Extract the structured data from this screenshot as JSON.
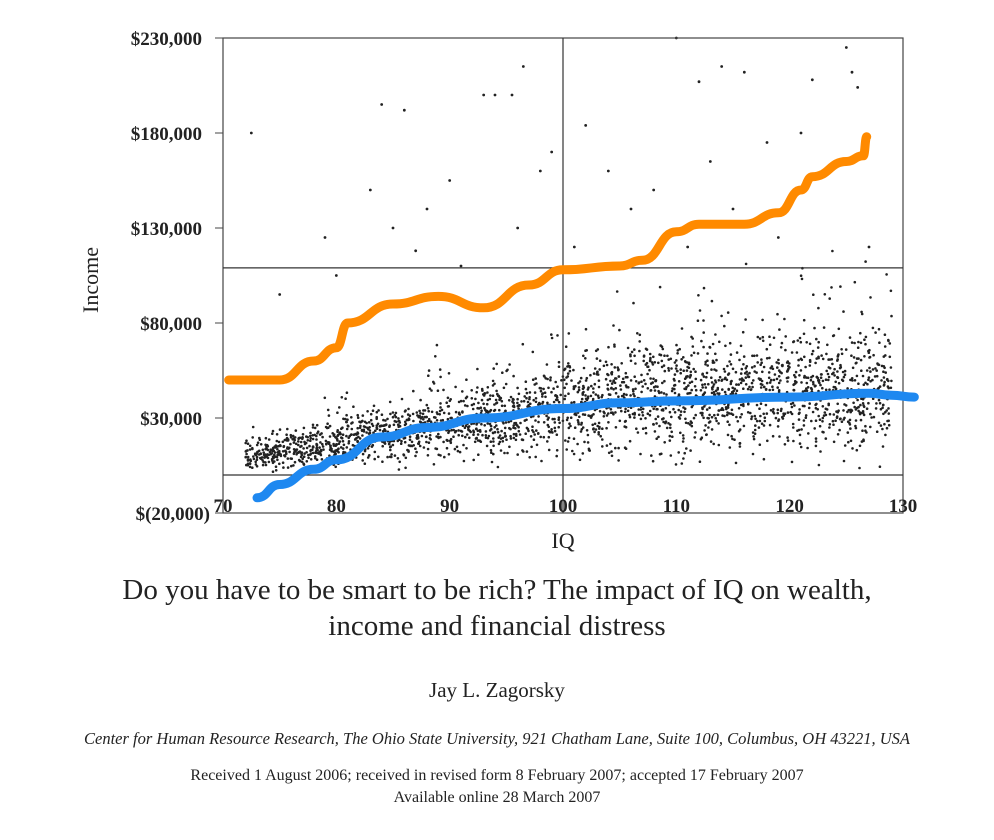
{
  "chart_data": {
    "type": "scatter",
    "xlabel": "IQ",
    "ylabel": "Income",
    "xlim": [
      70,
      130
    ],
    "ylim": [
      -20000,
      230000
    ],
    "x_ticks": [
      "70",
      "80",
      "90",
      "100",
      "110",
      "120",
      "130"
    ],
    "x_tick_values": [
      70,
      80,
      90,
      100,
      110,
      120,
      130
    ],
    "y_ticks": [
      "$230,000",
      "$180,000",
      "$130,000",
      "$80,000",
      "$30,000",
      "$(20,000)"
    ],
    "y_tick_values": [
      230000,
      180000,
      130000,
      80000,
      30000,
      -20000
    ],
    "reference_lines": {
      "vertical_iq": 100,
      "horizontal_income": 109000,
      "zero_income": 0
    },
    "grid": false,
    "scatter_cloud": {
      "count": 2600,
      "iq_range": [
        72,
        129
      ],
      "income_floor": 0,
      "seed": 7
    },
    "outliers": [
      [
        72.5,
        180000
      ],
      [
        84,
        195000
      ],
      [
        86,
        192000
      ],
      [
        93,
        200000
      ],
      [
        94,
        200000
      ],
      [
        95.5,
        200000
      ],
      [
        96.5,
        215000
      ],
      [
        102,
        184000
      ],
      [
        110,
        230000
      ],
      [
        112,
        207000
      ],
      [
        114,
        215000
      ],
      [
        116,
        212000
      ],
      [
        122,
        208000
      ],
      [
        125,
        225000
      ],
      [
        125.5,
        212000
      ],
      [
        126,
        204000
      ],
      [
        83,
        150000
      ],
      [
        88,
        140000
      ],
      [
        90,
        155000
      ],
      [
        98,
        160000
      ],
      [
        104,
        160000
      ],
      [
        108,
        150000
      ],
      [
        113,
        165000
      ],
      [
        118,
        175000
      ],
      [
        121,
        180000
      ],
      [
        123,
        160000
      ],
      [
        115,
        140000
      ],
      [
        96,
        130000
      ],
      [
        87,
        118000
      ],
      [
        79,
        125000
      ],
      [
        80,
        105000
      ],
      [
        75,
        95000
      ],
      [
        91,
        110000
      ],
      [
        101,
        120000
      ],
      [
        111,
        120000
      ],
      [
        119,
        125000
      ],
      [
        127,
        120000
      ],
      [
        106,
        140000
      ],
      [
        99,
        170000
      ],
      [
        85,
        130000
      ]
    ],
    "series": [
      {
        "name": "orange-trend",
        "color": "#ff8a00",
        "points": [
          [
            70.5,
            50000
          ],
          [
            75,
            50000
          ],
          [
            78,
            60000
          ],
          [
            80,
            67000
          ],
          [
            81,
            80000
          ],
          [
            85,
            90000
          ],
          [
            89,
            94000
          ],
          [
            93,
            88000
          ],
          [
            97,
            100000
          ],
          [
            100,
            108000
          ],
          [
            105,
            110000
          ],
          [
            107,
            113000
          ],
          [
            110,
            128000
          ],
          [
            112,
            132000
          ],
          [
            116,
            132000
          ],
          [
            119,
            138000
          ],
          [
            121,
            150000
          ],
          [
            122,
            157000
          ],
          [
            125,
            165000
          ],
          [
            126.5,
            168000
          ],
          [
            126.8,
            178000
          ]
        ]
      },
      {
        "name": "blue-trend",
        "color": "#1e88f0",
        "points": [
          [
            73,
            -12000
          ],
          [
            75,
            -5000
          ],
          [
            78,
            3000
          ],
          [
            80,
            8000
          ],
          [
            84,
            20000
          ],
          [
            88,
            25000
          ],
          [
            93,
            30000
          ],
          [
            100,
            35000
          ],
          [
            105,
            38000
          ],
          [
            110,
            39000
          ],
          [
            120,
            41000
          ],
          [
            127,
            43000
          ],
          [
            129,
            42000
          ],
          [
            131,
            41000
          ]
        ]
      }
    ]
  },
  "paper": {
    "title_line1": "Do you have to be smart to be rich? The impact of IQ on wealth,",
    "title_line2": "income and financial distress",
    "author": "Jay L. Zagorsky",
    "affiliation": "Center for Human Resource Research, The Ohio State University, 921 Chatham Lane, Suite 100, Columbus, OH 43221, USA",
    "received": "Received 1 August 2006; received in revised form 8 February 2007; accepted 17 February 2007",
    "available": "Available online 28 March 2007"
  }
}
